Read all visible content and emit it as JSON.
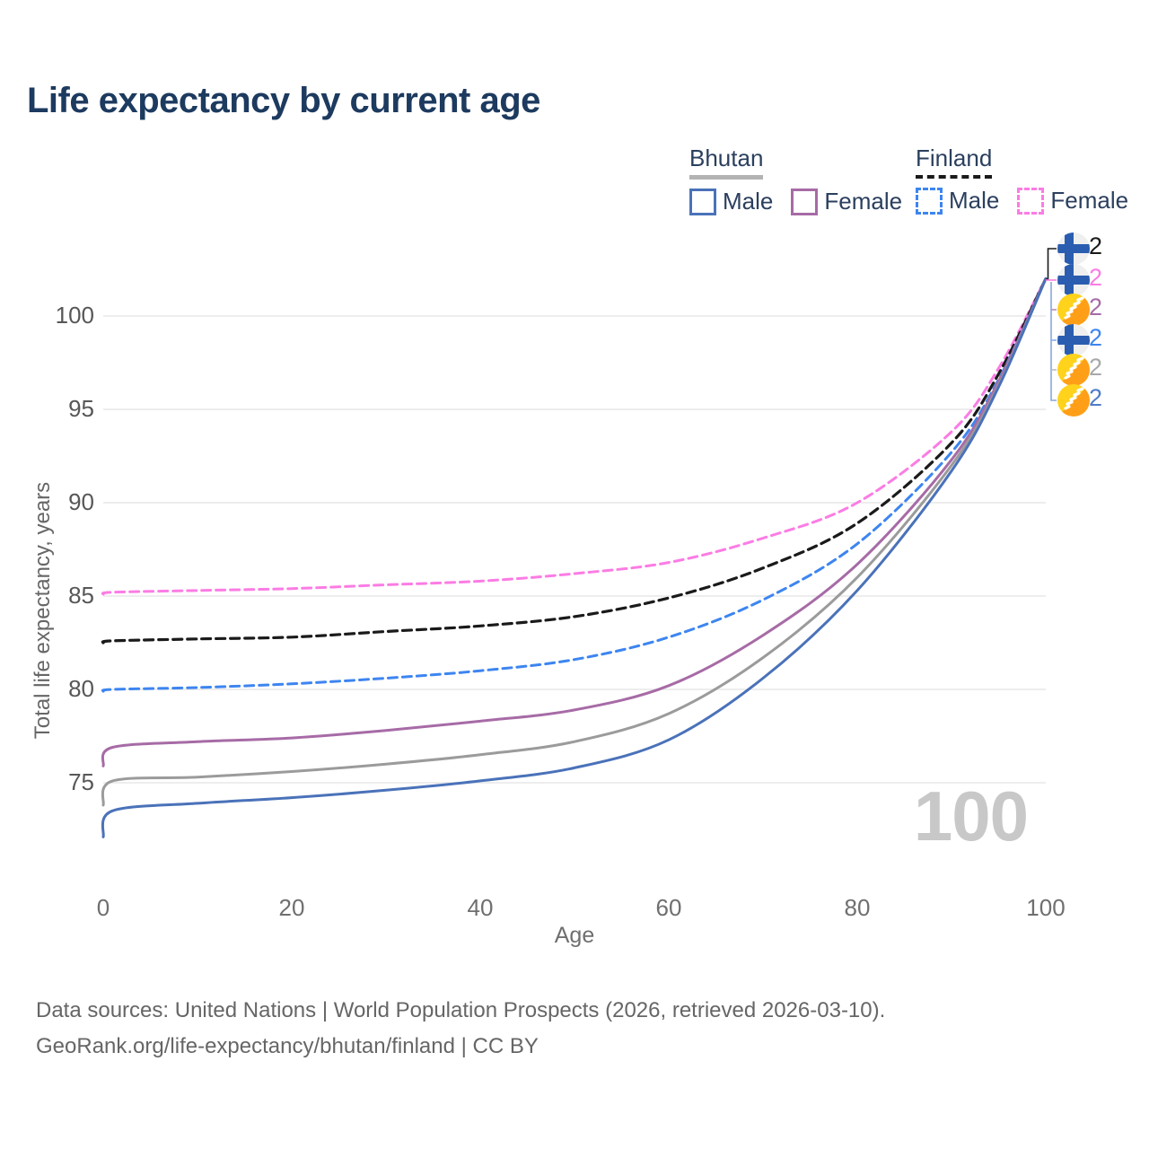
{
  "title": "Life expectancy by current age",
  "legend": {
    "groups": [
      {
        "label": "Bhutan",
        "line_style": "solid",
        "swatch_color": "#b3b3b3",
        "items": [
          {
            "label": "Male",
            "color": "#4a72b9"
          },
          {
            "label": "Female",
            "color": "#a76ba6"
          }
        ]
      },
      {
        "label": "Finland",
        "line_style": "dashed",
        "swatch_color": "#1a1a1a",
        "items": [
          {
            "label": "Male",
            "color": "#3d85f0"
          },
          {
            "label": "Female",
            "color": "#fb7ce4"
          }
        ]
      }
    ]
  },
  "axes": {
    "y_title": "Total life expectancy, years",
    "x_title": "Age",
    "y_ticks": [
      "75",
      "80",
      "85",
      "90",
      "95",
      "100"
    ],
    "x_ticks": [
      "0",
      "20",
      "40",
      "60",
      "80",
      "100"
    ]
  },
  "watermark": "100",
  "end_labels": [
    {
      "value": "102",
      "flag": "finland",
      "color": "#1a1a1a",
      "series": "Finland Both sexes"
    },
    {
      "value": "102",
      "flag": "finland",
      "color": "#fb7ce4",
      "series": "Finland Female"
    },
    {
      "value": "102",
      "flag": "bhutan",
      "color": "#a76ba6",
      "series": "Bhutan Female"
    },
    {
      "value": "102",
      "flag": "finland",
      "color": "#3d85f0",
      "series": "Finland Male"
    },
    {
      "value": "102",
      "flag": "bhutan",
      "color": "#a8a8a8",
      "series": "Bhutan Both sexes"
    },
    {
      "value": "102",
      "flag": "bhutan",
      "color": "#4e7cc9",
      "series": "Bhutan Male"
    }
  ],
  "footer": {
    "line1": "Data sources: United Nations | World Population Prospects (2026, retrieved 2026-03-10).",
    "line2": "GeoRank.org/life-expectancy/bhutan/finland | CC BY"
  },
  "chart_data": {
    "type": "line",
    "title": "Life expectancy by current age",
    "xlabel": "Age",
    "ylabel": "Total life expectancy, years",
    "x_range": [
      0,
      100
    ],
    "y_ticks": [
      75,
      80,
      85,
      90,
      95,
      100
    ],
    "x_ticks": [
      0,
      20,
      40,
      60,
      80,
      100
    ],
    "grid": "horizontal",
    "legend_position": "top-right",
    "x": [
      0,
      1,
      10,
      20,
      30,
      40,
      50,
      60,
      70,
      80,
      90,
      95,
      100
    ],
    "series": [
      {
        "name": "Finland Female",
        "country": "Finland",
        "sex": "Female",
        "color": "#fb7ce4",
        "dash": "dashed",
        "values": [
          85.1,
          85.2,
          85.3,
          85.4,
          85.6,
          85.8,
          86.2,
          86.8,
          88.1,
          90.0,
          93.8,
          97.2,
          102
        ]
      },
      {
        "name": "Finland Both sexes",
        "country": "Finland",
        "sex": "Both",
        "color": "#1a1a1a",
        "dash": "dashed",
        "values": [
          82.5,
          82.6,
          82.7,
          82.8,
          83.1,
          83.4,
          83.9,
          84.9,
          86.5,
          88.9,
          93.2,
          96.9,
          102
        ]
      },
      {
        "name": "Finland Male",
        "country": "Finland",
        "sex": "Male",
        "color": "#3d85f0",
        "dash": "dashed",
        "values": [
          79.9,
          80.0,
          80.1,
          80.3,
          80.6,
          81.0,
          81.6,
          82.8,
          84.8,
          87.8,
          92.7,
          96.6,
          102
        ]
      },
      {
        "name": "Bhutan Female",
        "country": "Bhutan",
        "sex": "Female",
        "color": "#a76ba6",
        "dash": "solid",
        "values": [
          75.9,
          76.9,
          77.2,
          77.4,
          77.8,
          78.3,
          78.9,
          80.2,
          82.9,
          86.7,
          92.3,
          96.5,
          102
        ]
      },
      {
        "name": "Bhutan Both sexes",
        "country": "Bhutan",
        "sex": "Both",
        "color": "#9b9b9b",
        "dash": "solid",
        "values": [
          73.8,
          75.1,
          75.3,
          75.6,
          76.0,
          76.5,
          77.2,
          78.7,
          81.7,
          86.0,
          92.0,
          96.3,
          102
        ]
      },
      {
        "name": "Bhutan Male",
        "country": "Bhutan",
        "sex": "Male",
        "color": "#4a72b9",
        "dash": "solid",
        "values": [
          72.1,
          73.5,
          73.9,
          74.2,
          74.6,
          75.1,
          75.8,
          77.3,
          80.6,
          85.3,
          91.7,
          96.2,
          102
        ]
      }
    ],
    "end_value_label": "102"
  }
}
